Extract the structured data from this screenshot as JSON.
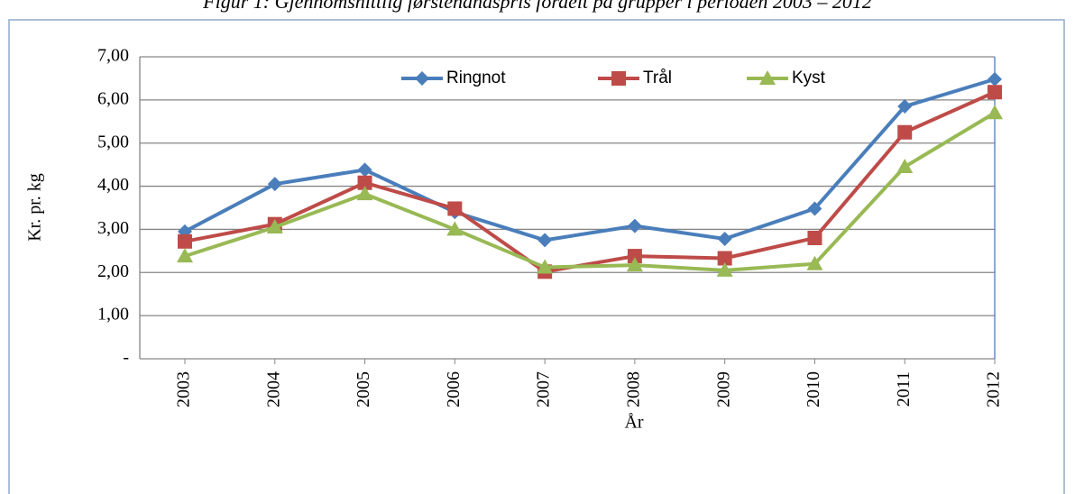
{
  "chart_data": {
    "type": "line",
    "title": "Figur 1: Gjennomsnittlig førstehåndspris fordelt på grupper i perioden 2003 – 2012",
    "x_label": "År",
    "y_label": "Kr. pr. kg",
    "categories": [
      "2003",
      "2004",
      "2005",
      "2006",
      "2007",
      "2008",
      "2009",
      "2010",
      "2011",
      "2012"
    ],
    "series": [
      {
        "name": "Ringnot",
        "color": "#4a7ebb",
        "marker": "diamond",
        "values": [
          2.95,
          4.05,
          4.38,
          3.4,
          2.75,
          3.08,
          2.78,
          3.48,
          5.85,
          6.48
        ]
      },
      {
        "name": "Trål",
        "color": "#be4b48",
        "marker": "square",
        "values": [
          2.72,
          3.12,
          4.08,
          3.48,
          2.02,
          2.38,
          2.33,
          2.8,
          5.25,
          6.18
        ]
      },
      {
        "name": "Kyst",
        "color": "#98b954",
        "marker": "triangle",
        "values": [
          2.38,
          3.05,
          3.82,
          3.0,
          2.12,
          2.17,
          2.05,
          2.2,
          4.45,
          5.7
        ]
      }
    ],
    "ylim": [
      0,
      7
    ],
    "yticks": [
      {
        "value": 0,
        "label": "-"
      },
      {
        "value": 1,
        "label": "1,00"
      },
      {
        "value": 2,
        "label": "2,00"
      },
      {
        "value": 3,
        "label": "3,00"
      },
      {
        "value": 4,
        "label": "4,00"
      },
      {
        "value": 5,
        "label": "5,00"
      },
      {
        "value": 6,
        "label": "6,00"
      },
      {
        "value": 7,
        "label": "7,00"
      }
    ],
    "grid": true,
    "legend": "top"
  }
}
